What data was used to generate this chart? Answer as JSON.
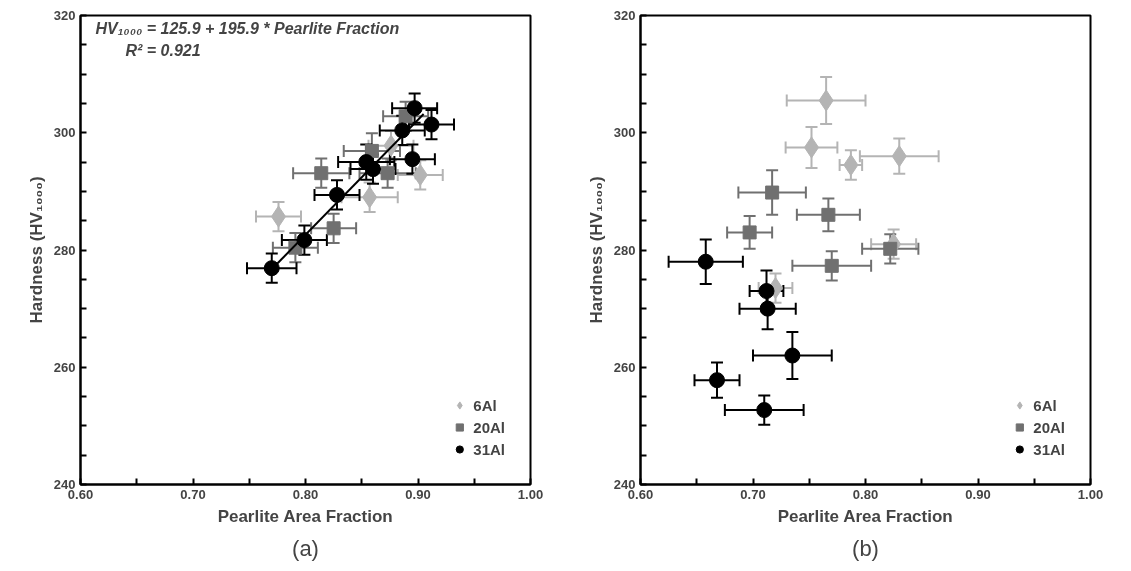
{
  "chart_data": [
    {
      "type": "scatter",
      "xlabel": "Pearlite Area Fraction",
      "ylabel": "Hardness (HV₁₀₀₀)",
      "annotations": [
        "HV₁₀₀₀ = 125.9 + 195.9 * Pearlite Fraction",
        "R² = 0.921",
        "(a)"
      ],
      "xlim": [
        0.6,
        1.0
      ],
      "ylim": [
        240,
        320
      ],
      "xticks": [
        {
          "value": 0.6,
          "label": "0.60"
        },
        {
          "value": 0.65,
          "label": null
        },
        {
          "value": 0.7,
          "label": "0.70"
        },
        {
          "value": 0.75,
          "label": null
        },
        {
          "value": 0.8,
          "label": "0.80"
        },
        {
          "value": 0.85,
          "label": null
        },
        {
          "value": 0.9,
          "label": "0.90"
        },
        {
          "value": 0.95,
          "label": null
        },
        {
          "value": 1.0,
          "label": "1.00"
        }
      ],
      "yticks": [
        240,
        {
          "value": 245,
          "label": null
        },
        {
          "value": 250,
          "label": null
        },
        {
          "value": 255,
          "label": null
        },
        260,
        {
          "value": 265,
          "label": null
        },
        {
          "value": 270,
          "label": null
        },
        {
          "value": 275,
          "label": null
        },
        280,
        {
          "value": 285,
          "label": null
        },
        {
          "value": 290,
          "label": null
        },
        {
          "value": 295,
          "label": null
        },
        300,
        {
          "value": 305,
          "label": null
        },
        {
          "value": 310,
          "label": null
        },
        {
          "value": 315,
          "label": null
        },
        320
      ],
      "grid": false,
      "legend": "bottom right",
      "series": [
        {
          "name": "6Al",
          "color": "#b4b4b4",
          "marker": "diamond",
          "x": [
            0.776,
            0.857,
            0.902,
            0.876
          ],
          "values": [
            285.7,
            289,
            292.8,
            297.8
          ],
          "xerrors": [
            0.02,
            0.025,
            0.02,
            0.02
          ],
          "errors": [
            2.5,
            2.5,
            2.5,
            2.5
          ]
        },
        {
          "name": "20Al",
          "color": "#707070",
          "marker": "square",
          "x": [
            0.814,
            0.825,
            0.791,
            0.859,
            0.873,
            0.889
          ],
          "values": [
            293.1,
            283.7,
            280.4,
            296.9,
            293.1,
            302.8
          ],
          "xerrors": [
            0.025,
            0.02,
            0.02,
            0.025,
            0.025,
            0.02
          ],
          "errors": [
            2.5,
            2.5,
            2.5,
            3,
            2.5,
            2.5
          ]
        },
        {
          "name": "31Al",
          "color": "#000000",
          "marker": "circle",
          "x": [
            0.77,
            0.799,
            0.828,
            0.854,
            0.86,
            0.895,
            0.886,
            0.897,
            0.912
          ],
          "values": [
            276.9,
            281.7,
            289.4,
            295.0,
            293.8,
            295.5,
            300.4,
            304.2,
            301.4
          ],
          "xerrors": [
            0.022,
            0.02,
            0.02,
            0.025,
            0.02,
            0.02,
            0.02,
            0.02,
            0.02
          ],
          "errors": [
            2.5,
            2.5,
            2.5,
            3,
            2.5,
            2.5,
            2.5,
            2.5,
            2.5
          ]
        },
        {
          "type": "line",
          "color": "#000000",
          "x": [
            0.775,
            0.905
          ],
          "values": [
            277.7,
            303.2
          ]
        }
      ]
    },
    {
      "type": "scatter",
      "xlabel": "Pearlite Area Fraction",
      "ylabel": "Hardness (HV₁₀₀₀)",
      "annotations": [
        "(b)"
      ],
      "xlim": [
        0.6,
        1.0
      ],
      "ylim": [
        240,
        320
      ],
      "xticks": [
        {
          "value": 0.6,
          "label": "0.60"
        },
        {
          "value": 0.65,
          "label": null
        },
        {
          "value": 0.7,
          "label": "0.70"
        },
        {
          "value": 0.75,
          "label": null
        },
        {
          "value": 0.8,
          "label": "0.80"
        },
        {
          "value": 0.85,
          "label": null
        },
        {
          "value": 0.9,
          "label": "0.90"
        },
        {
          "value": 0.95,
          "label": null
        },
        {
          "value": 1.0,
          "label": "1.00"
        }
      ],
      "yticks": [
        240,
        {
          "value": 245,
          "label": null
        },
        {
          "value": 250,
          "label": null
        },
        {
          "value": 255,
          "label": null
        },
        260,
        {
          "value": 265,
          "label": null
        },
        {
          "value": 270,
          "label": null
        },
        {
          "value": 275,
          "label": null
        },
        280,
        {
          "value": 285,
          "label": null
        },
        {
          "value": 290,
          "label": null
        },
        {
          "value": 295,
          "label": null
        },
        300,
        {
          "value": 305,
          "label": null
        },
        {
          "value": 310,
          "label": null
        },
        {
          "value": 315,
          "label": null
        },
        320
      ],
      "grid": false,
      "legend": "bottom right",
      "series": [
        {
          "name": "6Al",
          "color": "#b4b4b4",
          "marker": "diamond",
          "x": [
            0.765,
            0.752,
            0.787,
            0.83,
            0.72,
            0.825
          ],
          "values": [
            305.5,
            297.5,
            294.5,
            296,
            273.5,
            281
          ],
          "xerrors": [
            0.035,
            0.023,
            0.01,
            0.035,
            0.015,
            0.02
          ],
          "errors": [
            4,
            3.5,
            2.5,
            3,
            2.5,
            2.5
          ]
        },
        {
          "name": "20Al",
          "color": "#707070",
          "marker": "square",
          "x": [
            0.717,
            0.697,
            0.767,
            0.822,
            0.77
          ],
          "values": [
            289.8,
            283,
            286,
            280.2,
            277.3
          ],
          "xerrors": [
            0.03,
            0.02,
            0.028,
            0.025,
            0.035
          ],
          "errors": [
            3.8,
            2.8,
            2.8,
            2.5,
            2.5
          ]
        },
        {
          "name": "31Al",
          "color": "#000000",
          "marker": "circle",
          "x": [
            0.658,
            0.712,
            0.713,
            0.735,
            0.668,
            0.71
          ],
          "values": [
            278,
            273,
            270,
            262,
            257.8,
            252.7
          ],
          "xerrors": [
            0.033,
            0.015,
            0.025,
            0.035,
            0.02,
            0.035
          ],
          "errors": [
            3.8,
            3.5,
            3.5,
            4,
            3,
            2.5
          ]
        }
      ]
    }
  ]
}
